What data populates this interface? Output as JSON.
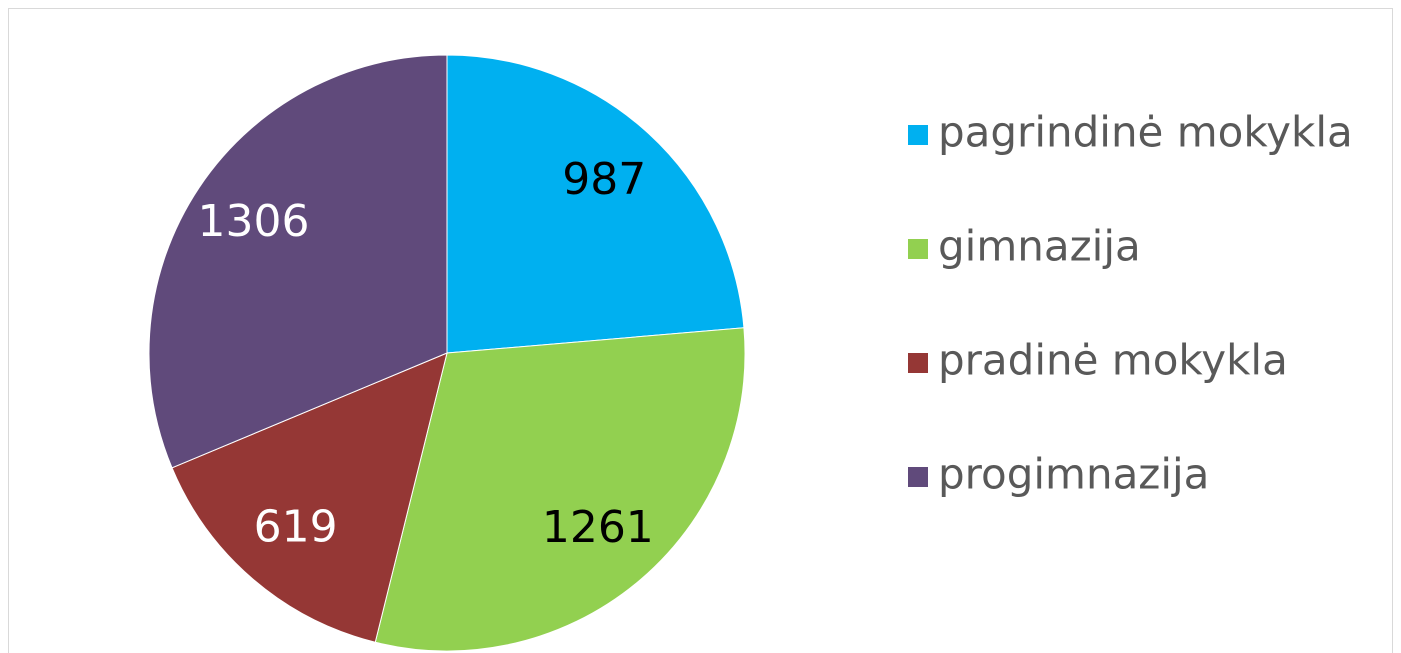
{
  "chart_data": {
    "type": "pie",
    "categories": [
      "pagrindinė mokykla",
      "gimnazija",
      "pradinė mokykla",
      "progimnazija"
    ],
    "values": [
      987,
      1261,
      619,
      1306
    ],
    "colors": [
      "#00b0f0",
      "#92d050",
      "#953735",
      "#604a7b"
    ],
    "legend": "right"
  }
}
